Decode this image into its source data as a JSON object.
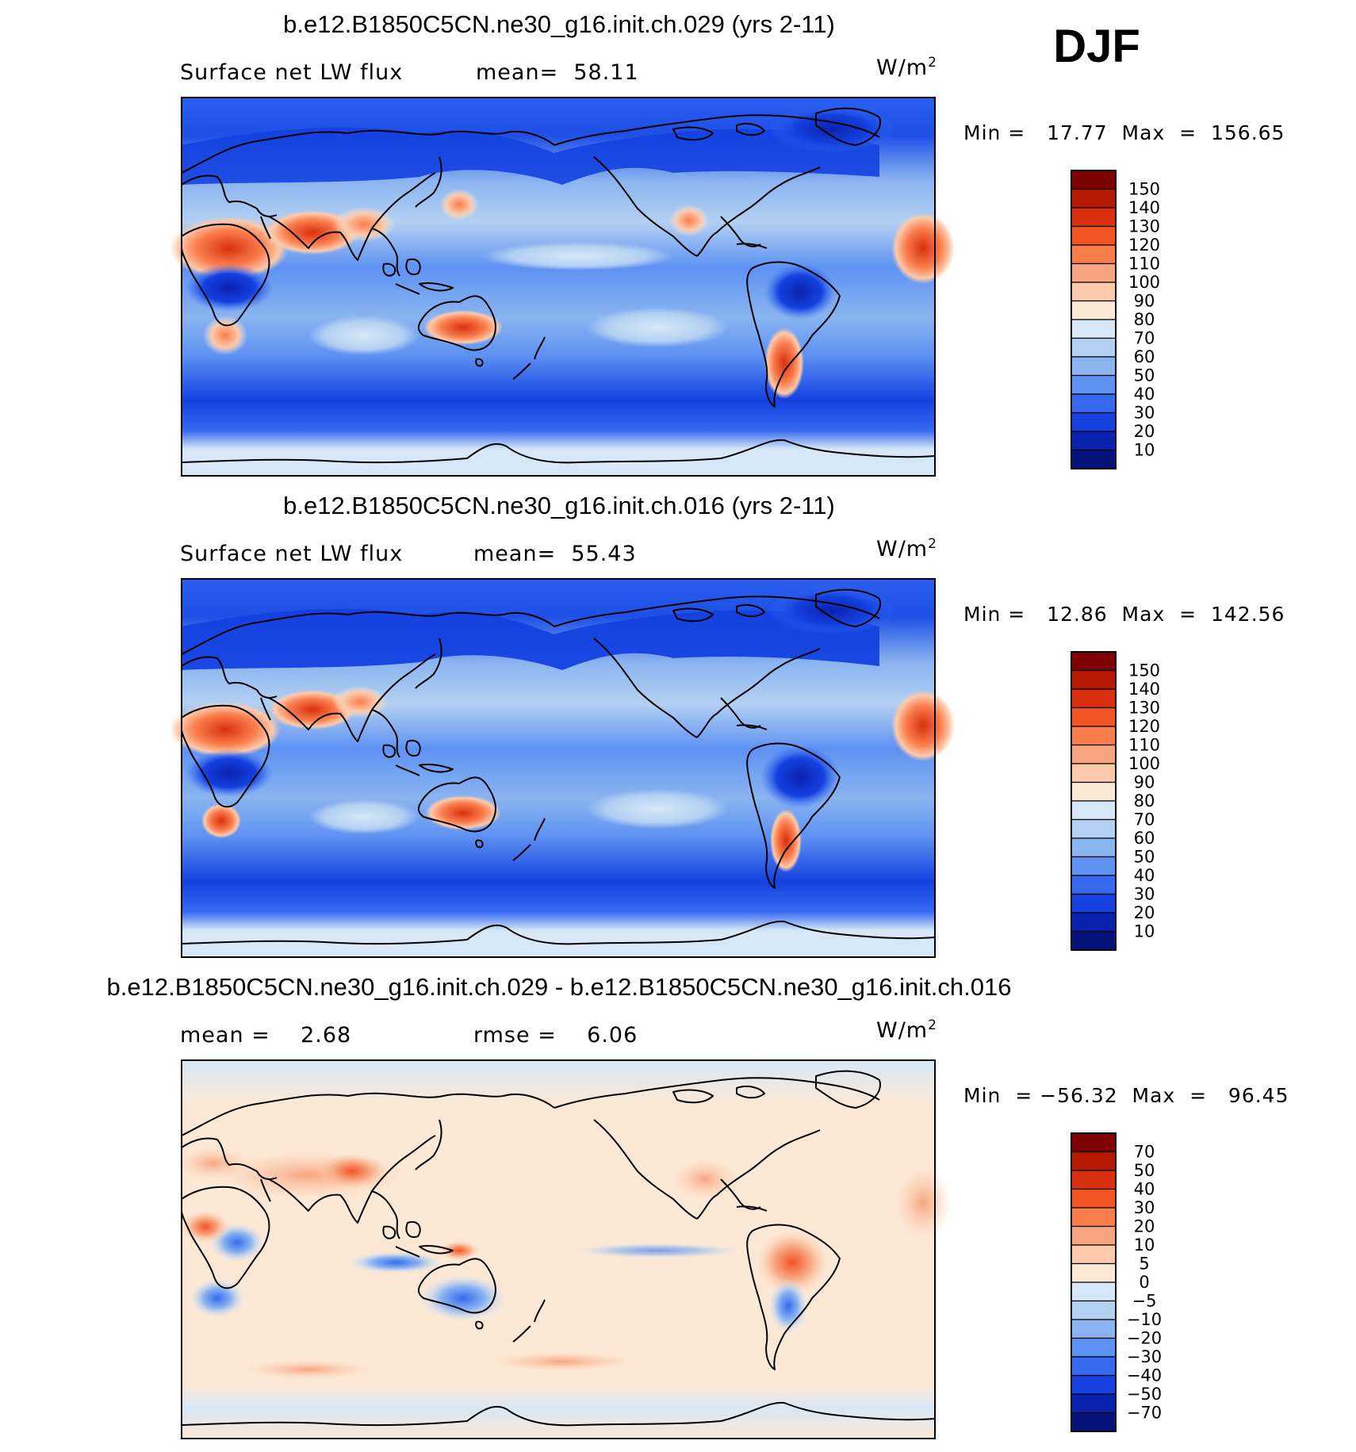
{
  "season": "DJF",
  "chart_data": [
    {
      "type": "heatmap",
      "title": "b.e12.B1850C5CN.ne30_g16.init.ch.029 (yrs 2-11)",
      "variable": "Surface net LW flux",
      "mean_text": "mean=  58.11",
      "units": "W/m",
      "units_sup": "2",
      "min_max_text": "Min =   17.77  Max  =  156.65",
      "min": 17.77,
      "max": 156.65,
      "colorbar_levels": [
        "150",
        "140",
        "130",
        "120",
        "110",
        "100",
        "90",
        "80",
        "70",
        "60",
        "50",
        "40",
        "30",
        "20",
        "10"
      ],
      "colorbar_colors": [
        "#7f0000",
        "#b31a00",
        "#d93010",
        "#f25522",
        "#fa7d4c",
        "#f7a57f",
        "#fcc9ab",
        "#fde8d5",
        "#d6e8f7",
        "#b3d0f2",
        "#8ab4f0",
        "#5e92f2",
        "#3669f0",
        "#1441e0",
        "#0a22b0",
        "#05127a"
      ]
    },
    {
      "type": "heatmap",
      "title": "b.e12.B1850C5CN.ne30_g16.init.ch.016 (yrs 2-11)",
      "variable": "Surface net LW flux",
      "mean_text": "mean=  55.43",
      "units": "W/m",
      "units_sup": "2",
      "min_max_text": "Min =   12.86  Max  =  142.56",
      "min": 12.86,
      "max": 142.56,
      "colorbar_levels": [
        "150",
        "140",
        "130",
        "120",
        "110",
        "100",
        "90",
        "80",
        "70",
        "60",
        "50",
        "40",
        "30",
        "20",
        "10"
      ],
      "colorbar_colors": [
        "#7f0000",
        "#b31a00",
        "#d93010",
        "#f25522",
        "#fa7d4c",
        "#f7a57f",
        "#fcc9ab",
        "#fde8d5",
        "#d6e8f7",
        "#b3d0f2",
        "#8ab4f0",
        "#5e92f2",
        "#3669f0",
        "#1441e0",
        "#0a22b0",
        "#05127a"
      ]
    },
    {
      "type": "heatmap",
      "title": "b.e12.B1850C5CN.ne30_g16.init.ch.029 - b.e12.B1850C5CN.ne30_g16.init.ch.016",
      "mean_text": "mean =    2.68",
      "rmse_text": "rmse =    6.06",
      "units": "W/m",
      "units_sup": "2",
      "min_max_text": "Min  = −56.32  Max  =   96.45",
      "min": -56.32,
      "max": 96.45,
      "colorbar_levels": [
        "70",
        "50",
        "40",
        "30",
        "20",
        "10",
        "5",
        "0",
        "−5",
        "−10",
        "−20",
        "−30",
        "−40",
        "−50",
        "−70"
      ],
      "colorbar_colors": [
        "#7f0000",
        "#b31a00",
        "#d93010",
        "#f25522",
        "#fa7d4c",
        "#f7a57f",
        "#fcc9ab",
        "#fde8d5",
        "#d6e8f7",
        "#b3d0f2",
        "#8ab4f0",
        "#5e92f2",
        "#3669f0",
        "#1441e0",
        "#0a22b0",
        "#05127a"
      ]
    }
  ]
}
